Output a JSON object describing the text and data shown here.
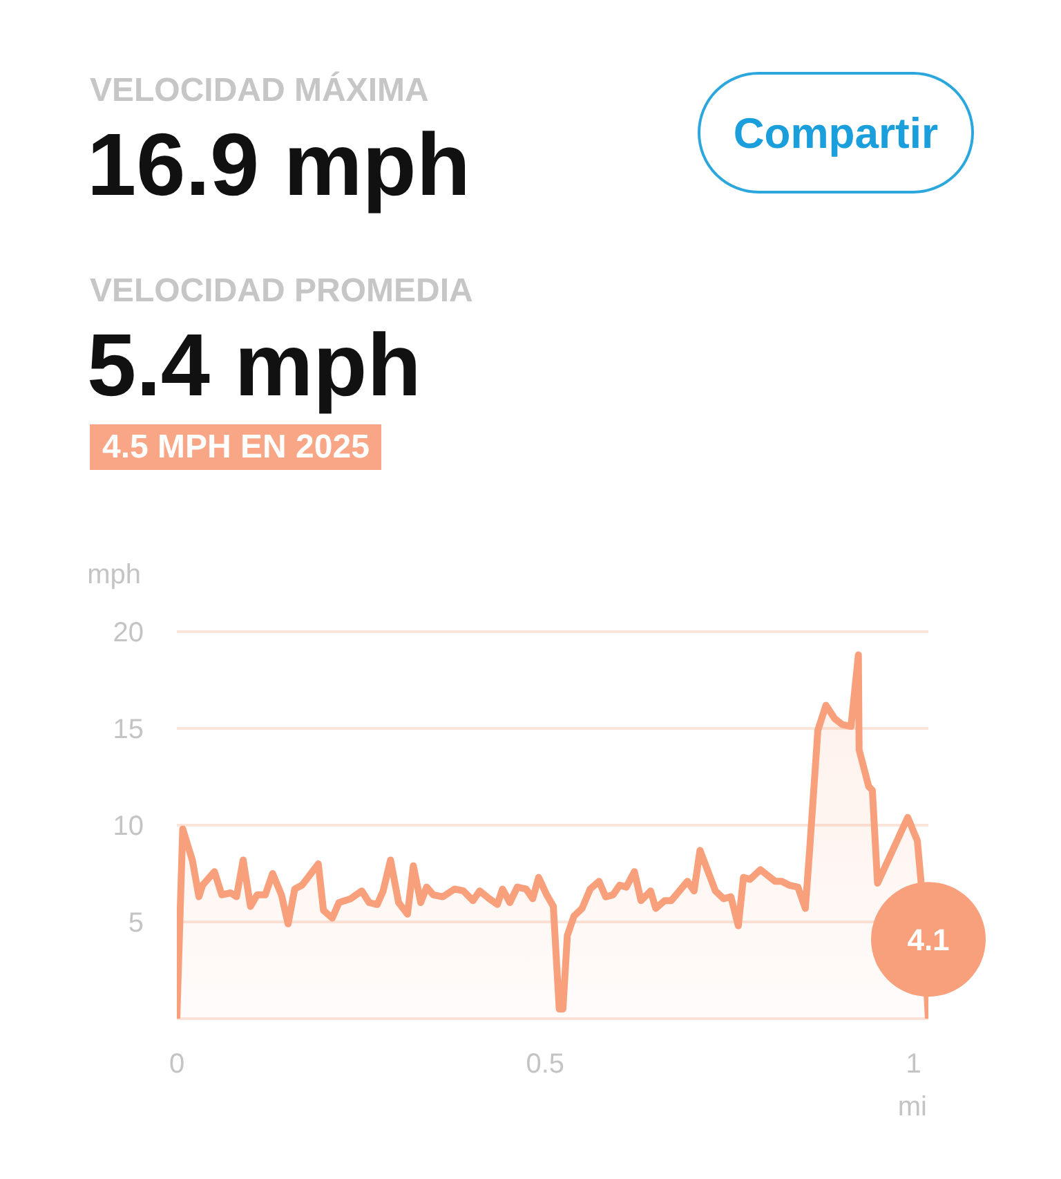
{
  "chart_data": {
    "type": "area",
    "xlabel": "mi",
    "ylabel": "mph",
    "x": [
      0,
      0.008,
      0.021,
      0.03,
      0.035,
      0.051,
      0.061,
      0.073,
      0.081,
      0.09,
      0.1,
      0.109,
      0.12,
      0.13,
      0.142,
      0.151,
      0.16,
      0.17,
      0.192,
      0.199,
      0.211,
      0.22,
      0.236,
      0.251,
      0.261,
      0.272,
      0.28,
      0.29,
      0.301,
      0.313,
      0.321,
      0.331,
      0.339,
      0.348,
      0.361,
      0.377,
      0.389,
      0.402,
      0.411,
      0.424,
      0.435,
      0.442,
      0.452,
      0.462,
      0.474,
      0.483,
      0.491,
      0.502,
      0.511,
      0.519,
      0.524,
      0.53,
      0.539,
      0.55,
      0.561,
      0.573,
      0.582,
      0.592,
      0.601,
      0.61,
      0.621,
      0.63,
      0.643,
      0.65,
      0.662,
      0.671,
      0.693,
      0.702,
      0.71,
      0.731,
      0.742,
      0.752,
      0.762,
      0.769,
      0.778,
      0.792,
      0.812,
      0.821,
      0.831,
      0.843,
      0.853,
      0.859,
      0.87,
      0.881,
      0.893,
      0.903,
      0.915,
      0.925,
      0.926,
      0.939,
      0.944,
      0.951,
      0.992,
      1.005,
      1.01,
      1.02
    ],
    "values": [
      0,
      9.8,
      8.2,
      6.3,
      6.9,
      7.6,
      6.4,
      6.5,
      6.3,
      8.2,
      5.8,
      6.4,
      6.4,
      7.5,
      6.4,
      4.9,
      6.7,
      6.9,
      8.0,
      5.6,
      5.2,
      6.0,
      6.2,
      6.6,
      6.0,
      5.9,
      6.6,
      8.2,
      6.0,
      5.4,
      7.9,
      6.0,
      6.8,
      6.4,
      6.3,
      6.7,
      6.6,
      6.1,
      6.6,
      6.2,
      5.9,
      6.7,
      6.0,
      6.8,
      6.7,
      6.2,
      7.3,
      6.4,
      5.8,
      0.5,
      0.5,
      4.3,
      5.3,
      5.7,
      6.7,
      7.1,
      6.3,
      6.4,
      6.9,
      6.8,
      7.6,
      6.1,
      6.6,
      5.7,
      6.1,
      6.1,
      7.1,
      6.6,
      8.7,
      6.6,
      6.2,
      6.3,
      4.8,
      7.3,
      7.2,
      7.7,
      7.1,
      7.1,
      6.9,
      6.8,
      5.7,
      8.8,
      14.9,
      16.2,
      15.5,
      15.2,
      15.1,
      18.8,
      13.9,
      12.0,
      11.8,
      7.0,
      10.4,
      9.2,
      7.1,
      0
    ],
    "color": "#f8a07c",
    "xlim": [
      0,
      1.02
    ],
    "xticks": [
      0,
      0.5,
      1
    ],
    "ylim": [
      0,
      20
    ],
    "yticks": [
      5,
      10,
      15,
      20
    ],
    "grid": "y",
    "annotations": [
      "VELOCIDAD MÁXIMA",
      "16.9 mph",
      "VELOCIDAD PROMEDIA",
      "5.4 mph",
      "4.5 MPH EN 2025",
      "Compartir",
      {
        "text": "4.1",
        "x": 1.02,
        "y": 4.1
      }
    ]
  }
}
